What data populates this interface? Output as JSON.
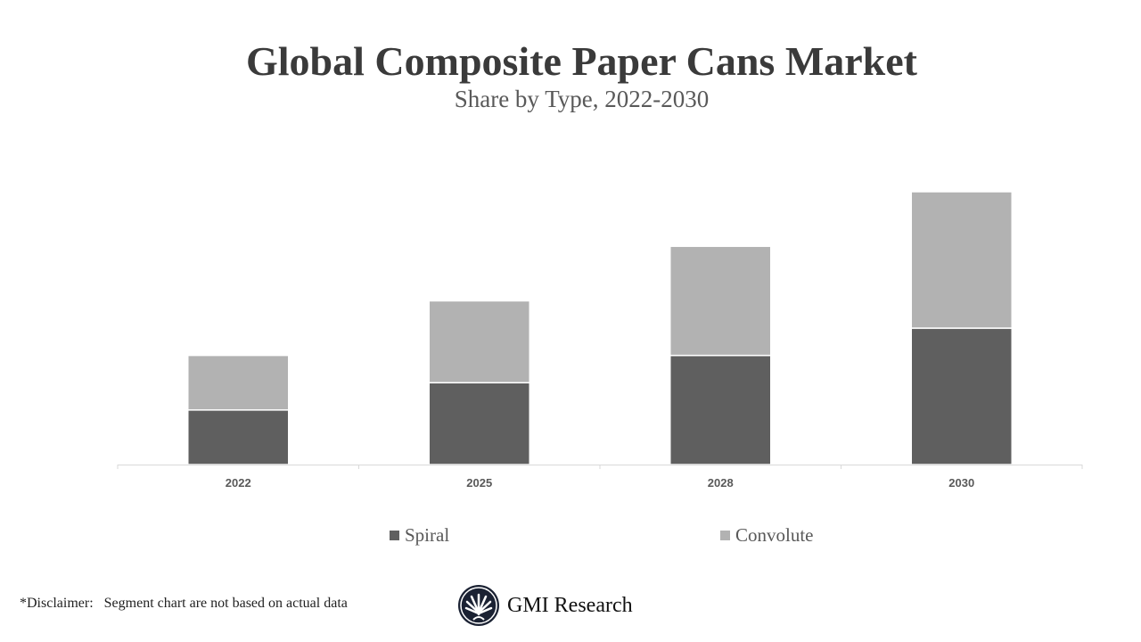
{
  "chart_data": {
    "type": "bar",
    "stacked": true,
    "title": "Global Composite Paper Cans Market",
    "subtitle": "Share by Type, 2022-2030",
    "categories": [
      "2022",
      "2025",
      "2028",
      "2030"
    ],
    "series": [
      {
        "name": "Spiral",
        "values": [
          2,
          3,
          4,
          5
        ],
        "color": "#5f5f5f"
      },
      {
        "name": "Convolute",
        "values": [
          2,
          3,
          4,
          5
        ],
        "color": "#b2b2b2"
      }
    ],
    "ylim": [
      0,
      10
    ],
    "grid": false,
    "y_axis_visible": false,
    "legend_position": "bottom"
  },
  "footer": {
    "disclaimer": "*Disclaimer:   Segment chart are not based on actual data",
    "brand": "GMI Research"
  }
}
